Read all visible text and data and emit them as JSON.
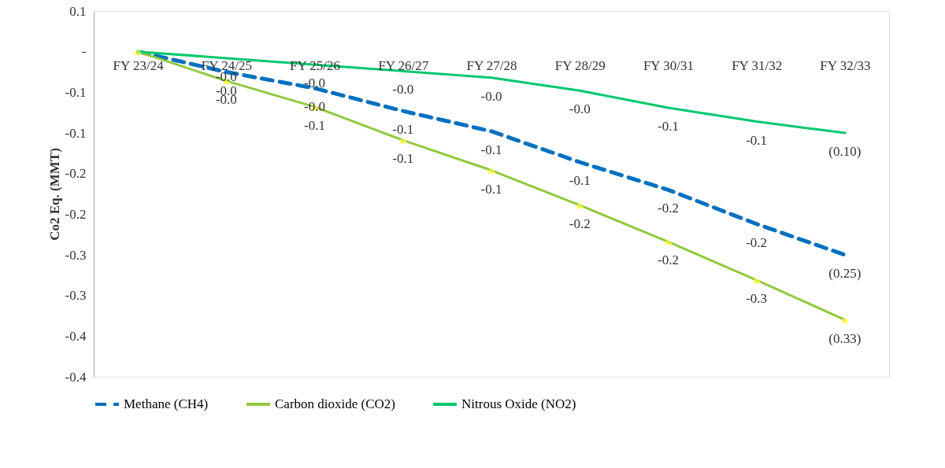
{
  "chart_data": {
    "type": "line",
    "ylabel": "Co2 Eq. (MMT)",
    "categories": [
      "FY 23/24",
      "FY 24/25",
      "FY 25/26",
      "FY 26/27",
      "FY 27/28",
      "FY 28/29",
      "FY 30/31",
      "FY 31/32",
      "FY 32/33"
    ],
    "series": [
      {
        "name": "Methane (CH4)",
        "color": "#0070c0",
        "line_style": "dashed",
        "marker": "none",
        "values": [
          0,
          -0.025,
          -0.045,
          -0.073,
          -0.098,
          -0.136,
          -0.17,
          -0.212,
          -0.25
        ],
        "value_labels": [
          null,
          "-0.0",
          "-0.0",
          "-0.1",
          "-0.1",
          "-0.1",
          "-0.2",
          "-0.2",
          "(0.25)"
        ]
      },
      {
        "name": "Carbon dioxide (CO2)",
        "color": "#92c83e",
        "line_style": "solid",
        "marker": "triangle",
        "values": [
          0,
          -0.036,
          -0.068,
          -0.109,
          -0.146,
          -0.189,
          -0.234,
          -0.281,
          -0.33
        ],
        "value_labels": [
          null,
          "-0.0",
          "-0.1",
          "-0.1",
          "-0.1",
          "-0.2",
          "-0.2",
          "-0.3",
          "(0.33)"
        ]
      },
      {
        "name": "Nitrous Oxide (NO2)",
        "color": "#00c86e",
        "line_style": "solid",
        "marker": "none",
        "values": [
          0,
          -0.008,
          -0.016,
          -0.024,
          -0.032,
          -0.048,
          -0.069,
          -0.086,
          -0.1
        ],
        "value_labels": [
          null,
          "-0.0",
          "-0.0",
          "-0.0",
          "-0.0",
          "-0.0",
          "-0.1",
          "-0.1",
          "(0.10)"
        ]
      }
    ],
    "ylim": [
      -0.4,
      0.05
    ],
    "yticks": [
      {
        "value": 0.05,
        "label": "0.1"
      },
      {
        "value": 0,
        "label": "-"
      },
      {
        "value": -0.05,
        "label": "-0.1"
      },
      {
        "value": -0.1,
        "label": "-0.1"
      },
      {
        "value": -0.15,
        "label": "-0.2"
      },
      {
        "value": -0.2,
        "label": "-0.2"
      },
      {
        "value": -0.25,
        "label": "-0.3"
      },
      {
        "value": -0.3,
        "label": "-0.3"
      },
      {
        "value": -0.35,
        "label": "-0.4"
      },
      {
        "value": -0.4,
        "label": "-0.4"
      }
    ],
    "grid": false,
    "legend": "bottom"
  }
}
